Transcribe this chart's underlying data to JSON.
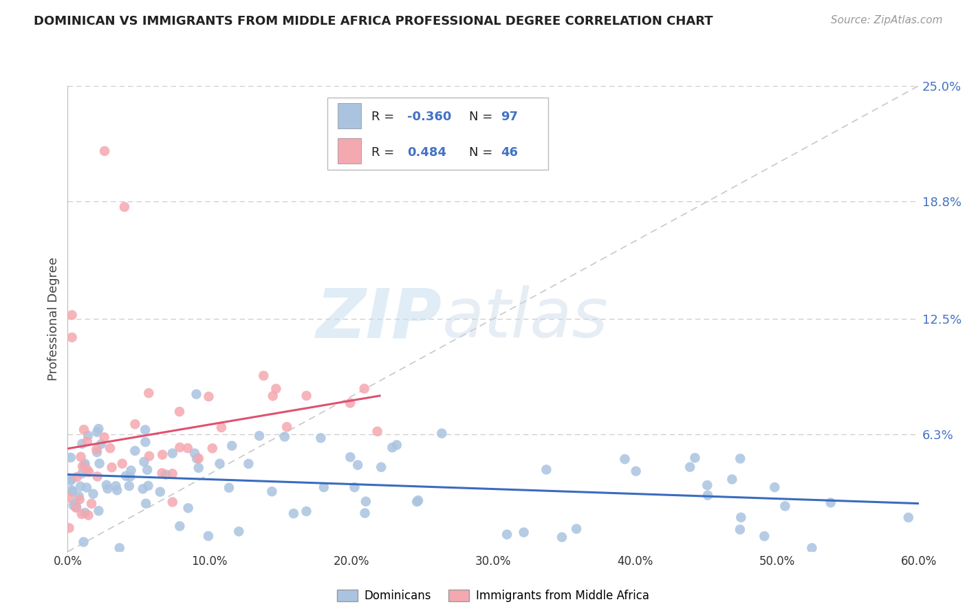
{
  "title": "DOMINICAN VS IMMIGRANTS FROM MIDDLE AFRICA PROFESSIONAL DEGREE CORRELATION CHART",
  "source": "Source: ZipAtlas.com",
  "ylabel": "Professional Degree",
  "xlim": [
    0.0,
    0.6
  ],
  "ylim": [
    0.0,
    0.25
  ],
  "xtick_labels": [
    "0.0%",
    "10.0%",
    "20.0%",
    "30.0%",
    "40.0%",
    "50.0%",
    "60.0%"
  ],
  "xtick_vals": [
    0.0,
    0.1,
    0.2,
    0.3,
    0.4,
    0.5,
    0.6
  ],
  "ytick_labels": [
    "6.3%",
    "12.5%",
    "18.8%",
    "25.0%"
  ],
  "ytick_vals": [
    0.063,
    0.125,
    0.188,
    0.25
  ],
  "grid_color": "#cccccc",
  "background_color": "#ffffff",
  "blue_color": "#aac4e0",
  "pink_color": "#f4a8b0",
  "blue_line_color": "#3a6bbf",
  "pink_line_color": "#e05070",
  "ref_line_color": "#c8c8c8",
  "watermark_zip": "ZIP",
  "watermark_atlas": "atlas",
  "legend_r1_label": "R = ",
  "legend_r1_val": "-0.360",
  "legend_n1_label": "N = ",
  "legend_n1_val": "97",
  "legend_r2_label": "R =  ",
  "legend_r2_val": "0.484",
  "legend_n2_label": "N = ",
  "legend_n2_val": "46",
  "text_color": "#222222",
  "blue_label_color": "#4472c4",
  "title_fontsize": 13,
  "label_fontsize": 13,
  "tick_fontsize": 12,
  "legend_label1": "Dominicans",
  "legend_label2": "Immigrants from Middle Africa"
}
